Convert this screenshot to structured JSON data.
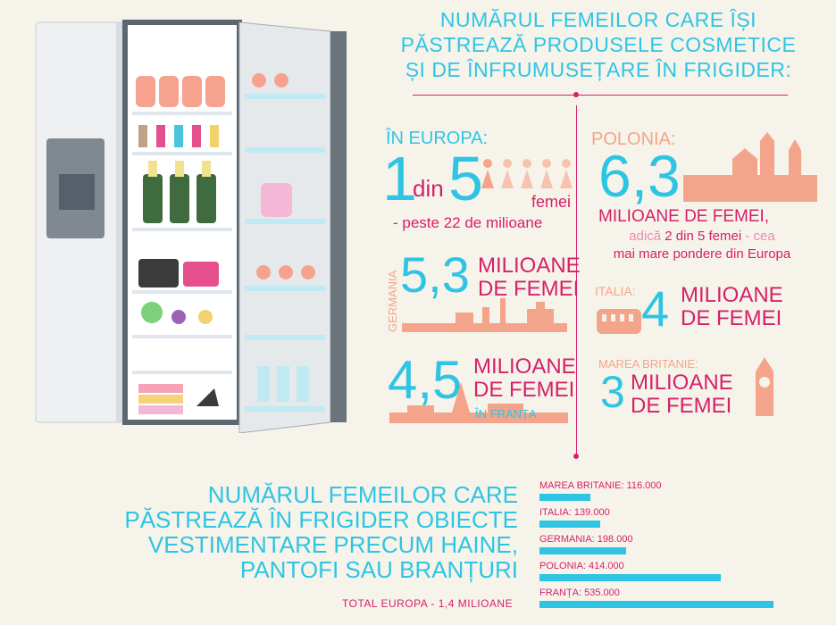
{
  "heading": [
    "NUMĂRUL FEMEILOR CARE ÎȘI",
    "PĂSTREAZĂ PRODUSELE COSMETICE",
    "ȘI DE ÎNFRUMUSEȚARE ÎN FRIGIDER:"
  ],
  "europe": {
    "label": "ÎN EUROPA:",
    "one": "1",
    "din": "din",
    "five": "5",
    "femei": "femei",
    "sub": "- peste 22 de milioane"
  },
  "poland": {
    "label": "POLONIA:",
    "number": "6,3",
    "millions": "MILIOANE DE FEMEI,",
    "desc_a": "adică",
    "desc_b": "2 din 5 femei",
    "desc_c": "- cea",
    "desc_line2": "mai mare pondere din Europa"
  },
  "germany": {
    "label": "GERMANIA",
    "number": "5,3",
    "line1": "MILIOANE",
    "line2": "DE FEMEI"
  },
  "italy": {
    "label": "ITALIA:",
    "number": "4",
    "line1": "MILIOANE",
    "line2": "DE FEMEI"
  },
  "france": {
    "number": "4,5",
    "line1": "MILIOANE",
    "line2": "DE FEMEI",
    "label": "ÎN FRANȚA"
  },
  "uk": {
    "label": "MAREA BRITANIE:",
    "number": "3",
    "line1": "MILIOANE",
    "line2": "DE FEMEI"
  },
  "bottom_heading": [
    "NUMĂRUL FEMEILOR CARE",
    "PĂSTREAZĂ ÎN FRIGIDER OBIECTE",
    "VESTIMENTARE PRECUM HAINE,",
    "PANTOFI SAU BRANȚURI"
  ],
  "total": "TOTAL EUROPA - 1,4 MILIOANE",
  "colors": {
    "cyan": "#2fc4e4",
    "pink": "#d6206a",
    "salmon": "#f4a48a",
    "background": "#f6f4ea"
  },
  "chart_data": {
    "type": "bar",
    "categories": [
      "MAREA BRITANIE: 116.000",
      "ITALIA: 139.000",
      "GERMANIA: 198.000",
      "POLONIA: 414.000",
      "FRANȚA: 535.000"
    ],
    "values": [
      116000,
      139000,
      198000,
      414000,
      535000
    ]
  }
}
